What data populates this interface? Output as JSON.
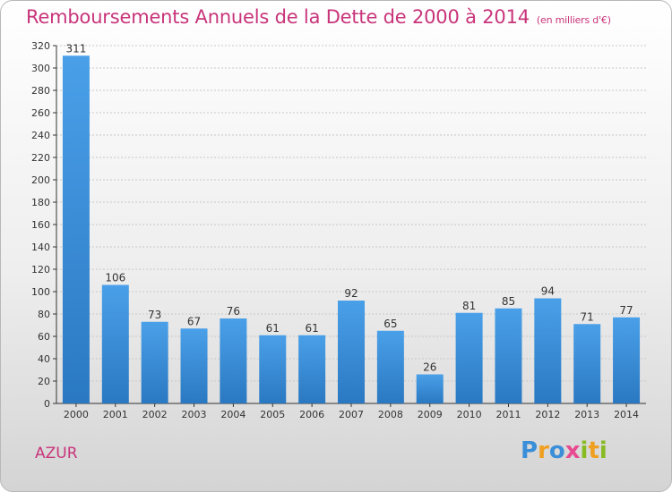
{
  "title": "Remboursements Annuels de la Dette de 2000 à 2014",
  "subtitle": "(en milliers d'€)",
  "commune": "AZUR",
  "brand": {
    "p": "P",
    "r": "r",
    "o": "o",
    "x": "x",
    "i": "i",
    "t": "t",
    "i2": "i"
  },
  "colors": {
    "bar": "#3a91de",
    "bar_dark": "#2a72bd",
    "title": "#c8347a"
  },
  "chart_data": {
    "type": "bar",
    "title": "Remboursements Annuels de la Dette de 2000 à 2014",
    "categories": [
      "2000",
      "2001",
      "2002",
      "2003",
      "2004",
      "2005",
      "2006",
      "2007",
      "2008",
      "2009",
      "2010",
      "2011",
      "2012",
      "2013",
      "2014"
    ],
    "values": [
      311,
      106,
      73,
      67,
      76,
      61,
      61,
      92,
      65,
      26,
      81,
      85,
      94,
      71,
      77
    ],
    "ylim": [
      0,
      320
    ],
    "yticks": [
      0,
      20,
      40,
      60,
      80,
      100,
      120,
      140,
      160,
      180,
      200,
      220,
      240,
      260,
      280,
      300,
      320
    ],
    "grid": true
  }
}
